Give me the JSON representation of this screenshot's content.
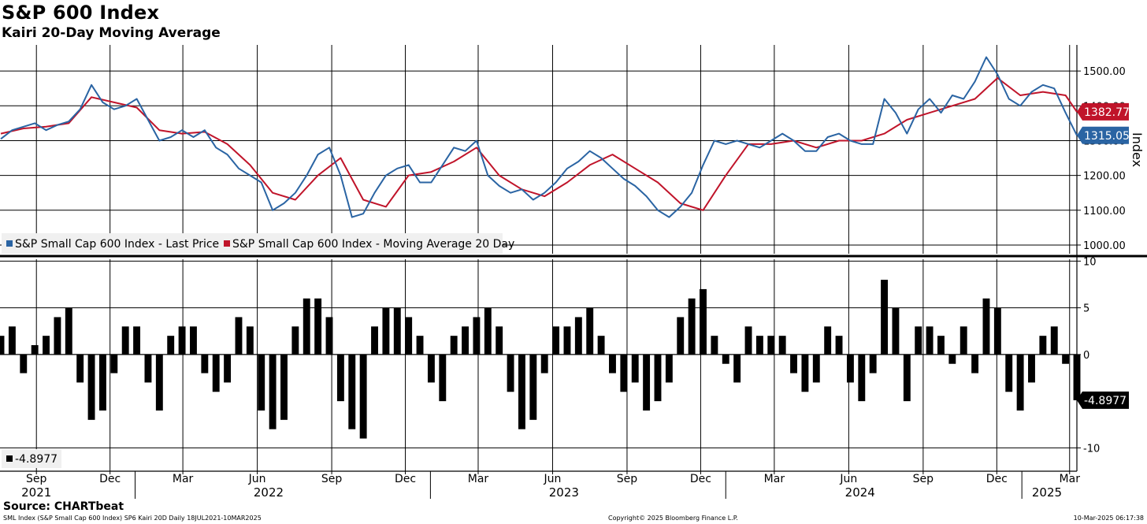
{
  "title": "S&P 600 Index",
  "subtitle": "Kairi 20-Day Moving Average",
  "source": "Source: CHARTbeat",
  "footer": {
    "left": "SML Index (S&P Small Cap 600 Index) SP6 Kairi 20D  Daily 18JUL2021-10MAR2025",
    "center": "Copyright© 2025 Bloomberg Finance L.P.",
    "right": "10-Mar-2025 06:17:38"
  },
  "colors": {
    "price": "#2a64a3",
    "ma": "#c0142a",
    "bars": "#000000",
    "grid": "#000000"
  },
  "chart_data": [
    {
      "type": "line",
      "ylabel": "Index",
      "ylim": [
        975,
        1575
      ],
      "yticks": [
        1000,
        1100,
        1200,
        1300,
        1400,
        1500
      ],
      "ytick_labels": [
        "1000.00",
        "1100.00",
        "1200.00",
        "1300.00",
        "1400.00",
        "1500.00"
      ],
      "last_value_labels": [
        {
          "series": "ma",
          "text": "1382.77",
          "value": 1382.77
        },
        {
          "series": "price",
          "text": "1315.05",
          "value": 1315.05
        }
      ],
      "legend": [
        {
          "key": "price",
          "text": "S&P Small Cap 600 Index - Last Price"
        },
        {
          "key": "ma",
          "text": "S&P Small Cap 600 Index - Moving Average 20 Day"
        }
      ],
      "legend_position": "bottom-left",
      "grid": true,
      "series": [
        {
          "name": "S&P Small Cap 600 Index - Last Price",
          "key": "price",
          "x": [
            "2021-07-19",
            "2021-08-02",
            "2021-08-16",
            "2021-08-30",
            "2021-09-13",
            "2021-09-27",
            "2021-10-11",
            "2021-10-25",
            "2021-11-08",
            "2021-11-22",
            "2021-12-06",
            "2021-12-20",
            "2022-01-03",
            "2022-01-17",
            "2022-01-31",
            "2022-02-14",
            "2022-02-28",
            "2022-03-14",
            "2022-03-28",
            "2022-04-11",
            "2022-04-25",
            "2022-05-09",
            "2022-05-23",
            "2022-06-06",
            "2022-06-20",
            "2022-07-04",
            "2022-07-18",
            "2022-08-01",
            "2022-08-15",
            "2022-08-29",
            "2022-09-12",
            "2022-09-26",
            "2022-10-10",
            "2022-10-24",
            "2022-11-07",
            "2022-11-21",
            "2022-12-05",
            "2022-12-19",
            "2023-01-02",
            "2023-01-16",
            "2023-01-30",
            "2023-02-13",
            "2023-02-27",
            "2023-03-13",
            "2023-03-27",
            "2023-04-10",
            "2023-04-24",
            "2023-05-08",
            "2023-05-22",
            "2023-06-05",
            "2023-06-19",
            "2023-07-03",
            "2023-07-17",
            "2023-07-31",
            "2023-08-14",
            "2023-08-28",
            "2023-09-11",
            "2023-09-25",
            "2023-10-09",
            "2023-10-23",
            "2023-11-06",
            "2023-11-20",
            "2023-12-04",
            "2023-12-18",
            "2024-01-01",
            "2024-01-15",
            "2024-01-29",
            "2024-02-12",
            "2024-02-26",
            "2024-03-11",
            "2024-03-25",
            "2024-04-08",
            "2024-04-22",
            "2024-05-06",
            "2024-05-20",
            "2024-06-03",
            "2024-06-17",
            "2024-07-01",
            "2024-07-15",
            "2024-07-29",
            "2024-08-12",
            "2024-08-26",
            "2024-09-09",
            "2024-09-23",
            "2024-10-07",
            "2024-10-21",
            "2024-11-04",
            "2024-11-18",
            "2024-12-02",
            "2024-12-16",
            "2024-12-30",
            "2025-01-13",
            "2025-01-27",
            "2025-02-10",
            "2025-02-24",
            "2025-03-10"
          ],
          "values": [
            1305,
            1330,
            1340,
            1350,
            1330,
            1345,
            1355,
            1390,
            1460,
            1410,
            1390,
            1400,
            1420,
            1360,
            1300,
            1310,
            1330,
            1310,
            1330,
            1280,
            1260,
            1220,
            1200,
            1180,
            1100,
            1120,
            1150,
            1200,
            1260,
            1280,
            1200,
            1080,
            1090,
            1150,
            1200,
            1220,
            1230,
            1180,
            1180,
            1230,
            1280,
            1270,
            1300,
            1200,
            1170,
            1150,
            1160,
            1130,
            1150,
            1180,
            1220,
            1240,
            1270,
            1250,
            1220,
            1190,
            1170,
            1140,
            1100,
            1080,
            1110,
            1150,
            1230,
            1300,
            1290,
            1300,
            1290,
            1280,
            1300,
            1320,
            1300,
            1270,
            1270,
            1310,
            1320,
            1300,
            1290,
            1290,
            1420,
            1380,
            1320,
            1390,
            1420,
            1380,
            1430,
            1420,
            1470,
            1540,
            1490,
            1420,
            1400,
            1440,
            1460,
            1450,
            1380,
            1315.05
          ]
        },
        {
          "name": "S&P Small Cap 600 Index - Moving Average 20 Day",
          "key": "ma",
          "x": [
            "2021-07-19",
            "2021-08-16",
            "2021-09-13",
            "2021-10-11",
            "2021-11-08",
            "2021-12-06",
            "2022-01-03",
            "2022-01-31",
            "2022-02-28",
            "2022-03-28",
            "2022-04-25",
            "2022-05-23",
            "2022-06-20",
            "2022-07-18",
            "2022-08-15",
            "2022-09-12",
            "2022-10-10",
            "2022-11-07",
            "2022-12-05",
            "2023-01-02",
            "2023-01-30",
            "2023-02-27",
            "2023-03-27",
            "2023-04-24",
            "2023-05-22",
            "2023-06-19",
            "2023-07-17",
            "2023-08-14",
            "2023-09-11",
            "2023-10-09",
            "2023-11-06",
            "2023-12-04",
            "2024-01-01",
            "2024-01-29",
            "2024-02-26",
            "2024-03-25",
            "2024-04-22",
            "2024-05-20",
            "2024-06-17",
            "2024-07-15",
            "2024-08-12",
            "2024-09-09",
            "2024-10-07",
            "2024-11-04",
            "2024-12-02",
            "2024-12-30",
            "2025-01-27",
            "2025-02-24",
            "2025-03-10"
          ],
          "values": [
            1320,
            1335,
            1340,
            1350,
            1425,
            1410,
            1395,
            1330,
            1320,
            1325,
            1290,
            1230,
            1150,
            1130,
            1200,
            1250,
            1130,
            1110,
            1200,
            1210,
            1240,
            1280,
            1200,
            1160,
            1140,
            1180,
            1230,
            1260,
            1220,
            1180,
            1120,
            1100,
            1200,
            1290,
            1290,
            1300,
            1280,
            1300,
            1300,
            1320,
            1360,
            1380,
            1400,
            1420,
            1480,
            1430,
            1440,
            1430,
            1382.77
          ]
        }
      ]
    },
    {
      "type": "bar",
      "ylim": [
        -12.5,
        10.2
      ],
      "yticks": [
        10,
        5,
        0,
        -10
      ],
      "ytick_labels": [
        "10",
        "5",
        "0",
        "-10"
      ],
      "last_value_labels": [
        {
          "series": "kairi",
          "text": "-4.8977",
          "value": -4.8977
        }
      ],
      "legend": [
        {
          "key": "kairi",
          "text": "-4.8977"
        }
      ],
      "legend_position": "bottom-left",
      "grid": true,
      "series": [
        {
          "key": "kairi",
          "x": [
            "2021-07-19",
            "2021-08-02",
            "2021-08-16",
            "2021-08-30",
            "2021-09-13",
            "2021-09-27",
            "2021-10-11",
            "2021-10-25",
            "2021-11-08",
            "2021-11-22",
            "2021-12-06",
            "2021-12-20",
            "2022-01-03",
            "2022-01-17",
            "2022-01-31",
            "2022-02-14",
            "2022-02-28",
            "2022-03-14",
            "2022-03-28",
            "2022-04-11",
            "2022-04-25",
            "2022-05-09",
            "2022-05-23",
            "2022-06-06",
            "2022-06-20",
            "2022-07-04",
            "2022-07-18",
            "2022-08-01",
            "2022-08-15",
            "2022-08-29",
            "2022-09-12",
            "2022-09-26",
            "2022-10-10",
            "2022-10-24",
            "2022-11-07",
            "2022-11-21",
            "2022-12-05",
            "2022-12-19",
            "2023-01-02",
            "2023-01-16",
            "2023-01-30",
            "2023-02-13",
            "2023-02-27",
            "2023-03-13",
            "2023-03-27",
            "2023-04-10",
            "2023-04-24",
            "2023-05-08",
            "2023-05-22",
            "2023-06-05",
            "2023-06-19",
            "2023-07-03",
            "2023-07-17",
            "2023-07-31",
            "2023-08-14",
            "2023-08-28",
            "2023-09-11",
            "2023-09-25",
            "2023-10-09",
            "2023-10-23",
            "2023-11-06",
            "2023-11-20",
            "2023-12-04",
            "2023-12-18",
            "2024-01-01",
            "2024-01-15",
            "2024-01-29",
            "2024-02-12",
            "2024-02-26",
            "2024-03-11",
            "2024-03-25",
            "2024-04-08",
            "2024-04-22",
            "2024-05-06",
            "2024-05-20",
            "2024-06-03",
            "2024-06-17",
            "2024-07-01",
            "2024-07-15",
            "2024-07-29",
            "2024-08-12",
            "2024-08-26",
            "2024-09-09",
            "2024-09-23",
            "2024-10-07",
            "2024-10-21",
            "2024-11-04",
            "2024-11-18",
            "2024-12-02",
            "2024-12-16",
            "2024-12-30",
            "2025-01-13",
            "2025-01-27",
            "2025-02-10",
            "2025-02-24",
            "2025-03-10"
          ],
          "values": [
            2,
            3,
            -2,
            1,
            2,
            4,
            5,
            -3,
            -7,
            -6,
            -2,
            3,
            3,
            -3,
            -6,
            2,
            3,
            3,
            -2,
            -4,
            -3,
            4,
            3,
            -6,
            -8,
            -7,
            3,
            6,
            6,
            4,
            -5,
            -8,
            -9,
            3,
            5,
            5,
            4,
            2,
            -3,
            -5,
            2,
            3,
            4,
            5,
            3,
            -4,
            -8,
            -7,
            -2,
            3,
            3,
            4,
            5,
            2,
            -2,
            -4,
            -3,
            -6,
            -5,
            -3,
            4,
            6,
            7,
            2,
            -1,
            -3,
            3,
            2,
            2,
            2,
            -2,
            -4,
            -3,
            3,
            2,
            -3,
            -5,
            -2,
            8,
            5,
            -5,
            3,
            3,
            2,
            -1,
            3,
            -2,
            6,
            5,
            -4,
            -6,
            -3,
            2,
            3,
            -1,
            -4.8977
          ]
        }
      ]
    }
  ],
  "x_axis": {
    "month_labels": [
      {
        "date": "2021-09-01",
        "text": "Sep"
      },
      {
        "date": "2021-12-01",
        "text": "Dec"
      },
      {
        "date": "2022-03-01",
        "text": "Mar"
      },
      {
        "date": "2022-06-01",
        "text": "Jun"
      },
      {
        "date": "2022-09-01",
        "text": "Sep"
      },
      {
        "date": "2022-12-01",
        "text": "Dec"
      },
      {
        "date": "2023-03-01",
        "text": "Mar"
      },
      {
        "date": "2023-06-01",
        "text": "Jun"
      },
      {
        "date": "2023-09-01",
        "text": "Sep"
      },
      {
        "date": "2023-12-01",
        "text": "Dec"
      },
      {
        "date": "2024-03-01",
        "text": "Mar"
      },
      {
        "date": "2024-06-01",
        "text": "Jun"
      },
      {
        "date": "2024-09-01",
        "text": "Sep"
      },
      {
        "date": "2024-12-01",
        "text": "Dec"
      },
      {
        "date": "2025-03-01",
        "text": "Mar"
      }
    ],
    "year_labels": [
      {
        "date": "2021-09-01",
        "text": "2021"
      },
      {
        "date": "2022-06-15",
        "text": "2022"
      },
      {
        "date": "2023-06-15",
        "text": "2023"
      },
      {
        "date": "2024-06-15",
        "text": "2024"
      },
      {
        "date": "2025-02-01",
        "text": "2025"
      }
    ],
    "year_separators": [
      "2022-01-01",
      "2023-01-01",
      "2024-01-01",
      "2025-01-01"
    ],
    "range": [
      "2021-07-18",
      "2025-03-10"
    ]
  }
}
